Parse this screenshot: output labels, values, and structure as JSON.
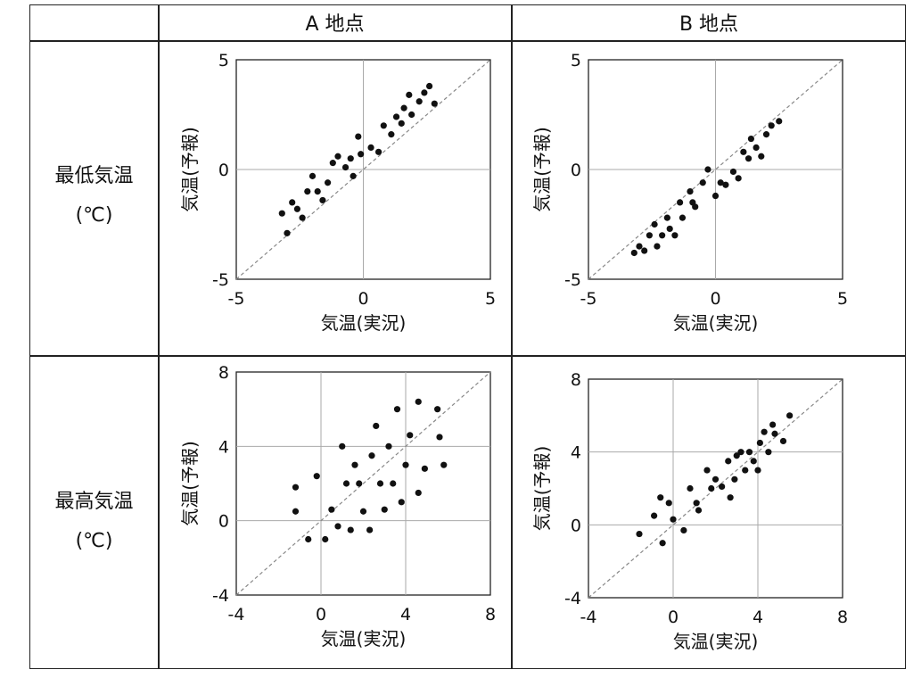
{
  "table": {
    "col_headers": [
      "A 地点",
      "B 地点"
    ],
    "row_headers": [
      {
        "name": "最低気温",
        "unit": "(℃)"
      },
      {
        "name": "最高気温",
        "unit": "(℃)"
      }
    ]
  },
  "chart_data": [
    {
      "type": "scatter",
      "panel": "最低気温 / A 地点",
      "xlabel": "気温(実況)",
      "ylabel": "気温(予報)",
      "xlim": [
        -5,
        5
      ],
      "ylim": [
        -5,
        5
      ],
      "xticks": [
        "-5",
        "0",
        "5"
      ],
      "yticks": [
        "-5",
        "0",
        "5"
      ],
      "grid": true,
      "reference_line": "y = x (dashed)",
      "points": [
        [
          -3.2,
          -2.0
        ],
        [
          -3.0,
          -2.9
        ],
        [
          -2.8,
          -1.5
        ],
        [
          -2.6,
          -1.8
        ],
        [
          -2.4,
          -2.2
        ],
        [
          -2.2,
          -1.0
        ],
        [
          -2.0,
          -0.3
        ],
        [
          -1.8,
          -1.0
        ],
        [
          -1.6,
          -1.4
        ],
        [
          -1.4,
          -0.6
        ],
        [
          -1.2,
          0.3
        ],
        [
          -1.0,
          0.6
        ],
        [
          -0.7,
          0.1
        ],
        [
          -0.5,
          0.5
        ],
        [
          -0.4,
          -0.3
        ],
        [
          -0.2,
          1.5
        ],
        [
          -0.1,
          0.7
        ],
        [
          0.3,
          1.0
        ],
        [
          0.6,
          0.8
        ],
        [
          0.8,
          2.0
        ],
        [
          1.1,
          1.6
        ],
        [
          1.3,
          2.4
        ],
        [
          1.5,
          2.1
        ],
        [
          1.6,
          2.8
        ],
        [
          1.8,
          3.4
        ],
        [
          1.9,
          2.5
        ],
        [
          2.2,
          3.1
        ],
        [
          2.4,
          3.5
        ],
        [
          2.6,
          3.8
        ],
        [
          2.8,
          3.0
        ]
      ]
    },
    {
      "type": "scatter",
      "panel": "最低気温 / B 地点",
      "xlabel": "気温(実況)",
      "ylabel": "気温(予報)",
      "xlim": [
        -5,
        5
      ],
      "ylim": [
        -5,
        5
      ],
      "xticks": [
        "-5",
        "0",
        "5"
      ],
      "yticks": [
        "-5",
        "0",
        "5"
      ],
      "grid": true,
      "reference_line": "y = x (dashed)",
      "points": [
        [
          -3.2,
          -3.8
        ],
        [
          -3.0,
          -3.5
        ],
        [
          -2.8,
          -3.7
        ],
        [
          -2.6,
          -3.0
        ],
        [
          -2.4,
          -2.5
        ],
        [
          -2.3,
          -3.5
        ],
        [
          -2.1,
          -3.0
        ],
        [
          -1.9,
          -2.2
        ],
        [
          -1.8,
          -2.7
        ],
        [
          -1.6,
          -3.0
        ],
        [
          -1.4,
          -1.5
        ],
        [
          -1.3,
          -2.2
        ],
        [
          -1.0,
          -1.0
        ],
        [
          -0.9,
          -1.5
        ],
        [
          -0.8,
          -1.7
        ],
        [
          -0.5,
          -0.6
        ],
        [
          -0.3,
          0.0
        ],
        [
          0.0,
          -1.2
        ],
        [
          0.2,
          -0.6
        ],
        [
          0.4,
          -0.7
        ],
        [
          0.7,
          -0.1
        ],
        [
          0.9,
          -0.4
        ],
        [
          1.1,
          0.8
        ],
        [
          1.3,
          0.5
        ],
        [
          1.4,
          1.4
        ],
        [
          1.6,
          1.0
        ],
        [
          1.8,
          0.6
        ],
        [
          2.0,
          1.6
        ],
        [
          2.2,
          2.0
        ],
        [
          2.5,
          2.2
        ]
      ]
    },
    {
      "type": "scatter",
      "panel": "最高気温 / A 地点",
      "xlabel": "気温(実況)",
      "ylabel": "気温(予報)",
      "xlim": [
        -4,
        8
      ],
      "ylim": [
        -4,
        8
      ],
      "xticks": [
        "-4",
        "0",
        "4",
        "8"
      ],
      "yticks": [
        "-4",
        "0",
        "4",
        "8"
      ],
      "grid": true,
      "reference_line": "y = x (dashed)",
      "points": [
        [
          -1.2,
          1.8
        ],
        [
          -1.2,
          0.5
        ],
        [
          -0.6,
          -1.0
        ],
        [
          -0.2,
          2.4
        ],
        [
          0.2,
          -1.0
        ],
        [
          0.5,
          0.6
        ],
        [
          0.8,
          -0.3
        ],
        [
          1.0,
          4.0
        ],
        [
          1.2,
          2.0
        ],
        [
          1.4,
          -0.5
        ],
        [
          1.6,
          3.0
        ],
        [
          1.8,
          2.0
        ],
        [
          2.0,
          0.5
        ],
        [
          2.3,
          -0.5
        ],
        [
          2.4,
          3.5
        ],
        [
          2.6,
          5.1
        ],
        [
          2.8,
          2.0
        ],
        [
          3.0,
          0.6
        ],
        [
          3.2,
          4.0
        ],
        [
          3.4,
          2.0
        ],
        [
          3.6,
          6.0
        ],
        [
          3.8,
          1.0
        ],
        [
          4.0,
          3.0
        ],
        [
          4.2,
          4.6
        ],
        [
          4.6,
          1.5
        ],
        [
          4.6,
          6.4
        ],
        [
          4.9,
          2.8
        ],
        [
          5.5,
          6.0
        ],
        [
          5.6,
          4.5
        ],
        [
          5.8,
          3.0
        ]
      ]
    },
    {
      "type": "scatter",
      "panel": "最高気温 / B 地点",
      "xlabel": "気温(実況)",
      "ylabel": "気温(予報)",
      "xlim": [
        -4,
        8
      ],
      "ylim": [
        -4,
        8
      ],
      "xticks": [
        "-4",
        "0",
        "4",
        "8"
      ],
      "yticks": [
        "-4",
        "0",
        "4",
        "8"
      ],
      "grid": true,
      "reference_line": "y = x (dashed)",
      "points": [
        [
          -1.6,
          -0.5
        ],
        [
          -0.9,
          0.5
        ],
        [
          -0.6,
          1.5
        ],
        [
          -0.5,
          -1.0
        ],
        [
          -0.2,
          1.2
        ],
        [
          0.0,
          0.3
        ],
        [
          0.5,
          -0.3
        ],
        [
          0.8,
          2.0
        ],
        [
          1.1,
          1.2
        ],
        [
          1.2,
          0.8
        ],
        [
          1.6,
          3.0
        ],
        [
          1.8,
          2.0
        ],
        [
          2.0,
          2.5
        ],
        [
          2.3,
          2.1
        ],
        [
          2.6,
          3.5
        ],
        [
          2.7,
          1.5
        ],
        [
          2.9,
          2.5
        ],
        [
          3.2,
          4.0
        ],
        [
          3.4,
          3.0
        ],
        [
          3.6,
          4.0
        ],
        [
          3.8,
          3.5
        ],
        [
          4.0,
          3.0
        ],
        [
          4.1,
          4.5
        ],
        [
          4.3,
          5.1
        ],
        [
          4.5,
          4.0
        ],
        [
          4.7,
          5.5
        ],
        [
          4.8,
          5.0
        ],
        [
          5.2,
          4.6
        ],
        [
          5.5,
          6.0
        ],
        [
          3.0,
          3.8
        ]
      ]
    }
  ]
}
